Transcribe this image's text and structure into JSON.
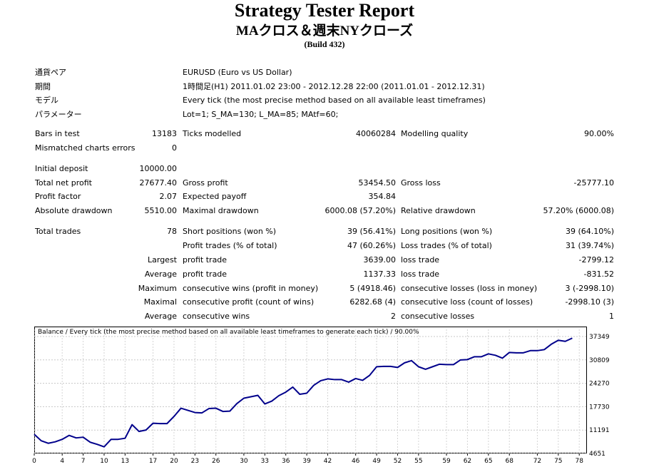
{
  "header": {
    "title": "Strategy Tester Report",
    "subtitle": "MAクロス＆週末NYクローズ",
    "build": "(Build 432)"
  },
  "info": {
    "symbol_label": "通貨ペア",
    "symbol_value": "EURUSD (Euro vs US Dollar)",
    "period_label": "期間",
    "period_value": "1時間足(H1) 2011.01.02 23:00 - 2012.12.28 22:00 (2011.01.01 - 2012.12.31)",
    "model_label": "モデル",
    "model_value": "Every tick (the most precise method based on all available least timeframes)",
    "params_label": "パラメーター",
    "params_value": "Lot=1; S_MA=130; L_MA=85; MAtf=60;"
  },
  "stats": {
    "bars_label": "Bars in test",
    "bars_value": "13183",
    "ticks_label": "Ticks modelled",
    "ticks_value": "40060284",
    "quality_label": "Modelling quality",
    "quality_value": "90.00%",
    "mismatch_label": "Mismatched charts errors",
    "mismatch_value": "0",
    "deposit_label": "Initial deposit",
    "deposit_value": "10000.00",
    "netprofit_label": "Total net profit",
    "netprofit_value": "27677.40",
    "grossprofit_label": "Gross profit",
    "grossprofit_value": "53454.50",
    "grossloss_label": "Gross loss",
    "grossloss_value": "-25777.10",
    "pf_label": "Profit factor",
    "pf_value": "2.07",
    "ep_label": "Expected payoff",
    "ep_value": "354.84",
    "absdd_label": "Absolute drawdown",
    "absdd_value": "5510.00",
    "maxdd_label": "Maximal drawdown",
    "maxdd_value": "6000.08 (57.20%)",
    "reldd_label": "Relative drawdown",
    "reldd_value": "57.20% (6000.08)",
    "trades_label": "Total trades",
    "trades_value": "78",
    "short_label": "Short positions (won %)",
    "short_value": "39 (56.41%)",
    "long_label": "Long positions (won %)",
    "long_value": "39 (64.10%)",
    "pt_label": "Profit trades (% of total)",
    "pt_value": "47 (60.26%)",
    "lt_label": "Loss trades (% of total)",
    "lt_value": "31 (39.74%)",
    "largest_label": "Largest",
    "largest_pt_label": "profit trade",
    "largest_pt_value": "3639.00",
    "largest_lt_label": "loss trade",
    "largest_lt_value": "-2799.12",
    "average_label": "Average",
    "average_pt_label": "profit trade",
    "average_pt_value": "1137.33",
    "average_lt_label": "loss trade",
    "average_lt_value": "-831.52",
    "maximum_label": "Maximum",
    "max_cw_label": "consecutive wins (profit in money)",
    "max_cw_value": "5 (4918.46)",
    "max_cl_label": "consecutive losses (loss in money)",
    "max_cl_value": "3 (-2998.10)",
    "maximal_label": "Maximal",
    "maximal_cp_label": "consecutive profit (count of wins)",
    "maximal_cp_value": "6282.68 (4)",
    "maximal_cl_label": "consecutive loss (count of losses)",
    "maximal_cl_value": "-2998.10 (3)",
    "avg2_label": "Average",
    "avg_cw_label": "consecutive wins",
    "avg_cw_value": "2",
    "avg_cl_label": "consecutive losses",
    "avg_cl_value": "1"
  },
  "chart_data": {
    "type": "line",
    "title": "Balance / Every tick (the most precise method based on all available least timeframes to generate each tick) / 90.00%",
    "x_ticks": [
      "0",
      "4",
      "7",
      "10",
      "13",
      "17",
      "20",
      "23",
      "26",
      "30",
      "33",
      "36",
      "39",
      "42",
      "46",
      "49",
      "52",
      "55",
      "59",
      "62",
      "65",
      "68",
      "72",
      "75",
      "78"
    ],
    "y_ticks": [
      "37349",
      "30809",
      "24270",
      "17730",
      "11191",
      "4651"
    ],
    "ylim": [
      4651,
      37349
    ],
    "xlim": [
      0,
      79
    ],
    "grid": true,
    "line_color": "#00008b",
    "series": [
      {
        "values": [
          10000,
          8200,
          7500,
          7900,
          8600,
          9700,
          9000,
          9200,
          7800,
          7200,
          6500,
          8600,
          8600,
          8900,
          12700,
          10800,
          11200,
          13100,
          13000,
          13000,
          15000,
          17300,
          16700,
          16100,
          16000,
          17200,
          17300,
          16400,
          16500,
          18600,
          20100,
          20500,
          20900,
          18500,
          19300,
          20800,
          21800,
          23200,
          21200,
          21500,
          23700,
          25000,
          25500,
          25300,
          25300,
          24600,
          25600,
          25100,
          26500,
          28900,
          29000,
          29000,
          28700,
          30000,
          30600,
          28900,
          28200,
          28900,
          29600,
          29500,
          29500,
          30800,
          30900,
          31700,
          31700,
          32500,
          32100,
          31300,
          32900,
          32800,
          32800,
          33400,
          33400,
          33700,
          35200,
          36300,
          36000,
          36900
        ]
      }
    ]
  }
}
